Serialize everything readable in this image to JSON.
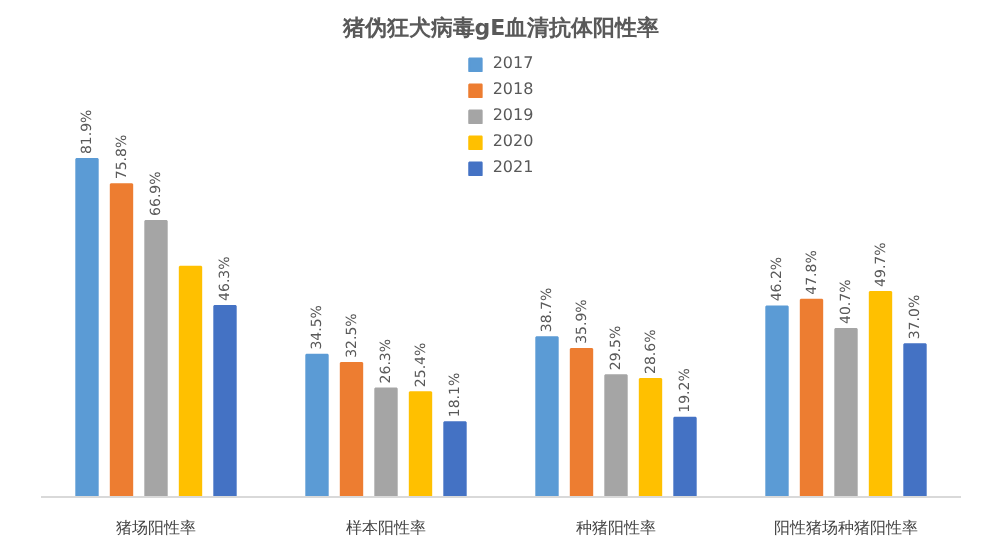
{
  "chart_data": {
    "type": "bar",
    "title": "猪伪狂犬病毒gE血清抗体阳性率",
    "categories": [
      "猪场阳性率",
      "样本阳性率",
      "种猪阳性率",
      "阳性猪场种猪阳性率"
    ],
    "legend": "top",
    "series": [
      {
        "name": "2017",
        "color": "#5b9bd5",
        "values": [
          81.9,
          34.5,
          38.7,
          46.2
        ],
        "value_labels": [
          "81.9%",
          "34.5%",
          "38.7%",
          "46.2%"
        ]
      },
      {
        "name": "2018",
        "color": "#ed7d31",
        "values": [
          75.8,
          32.5,
          35.9,
          47.8
        ],
        "value_labels": [
          "75.8%",
          "32.5%",
          "35.9%",
          "47.8%"
        ]
      },
      {
        "name": "2019",
        "color": "#a5a5a5",
        "values": [
          66.9,
          26.3,
          29.5,
          40.7
        ],
        "value_labels": [
          "66.9%",
          "26.3%",
          "29.5%",
          "40.7%"
        ]
      },
      {
        "name": "2020",
        "color": "#ffc000",
        "values": [
          55.8,
          25.4,
          28.6,
          49.7
        ],
        "value_labels": [
          null,
          "25.4%",
          "28.6%",
          "49.7%"
        ]
      },
      {
        "name": "2021",
        "color": "#4472c4",
        "values": [
          46.3,
          18.1,
          19.2,
          37.0
        ],
        "value_labels": [
          "46.3%",
          "18.1%",
          "19.2%",
          "37.0%"
        ]
      }
    ]
  }
}
